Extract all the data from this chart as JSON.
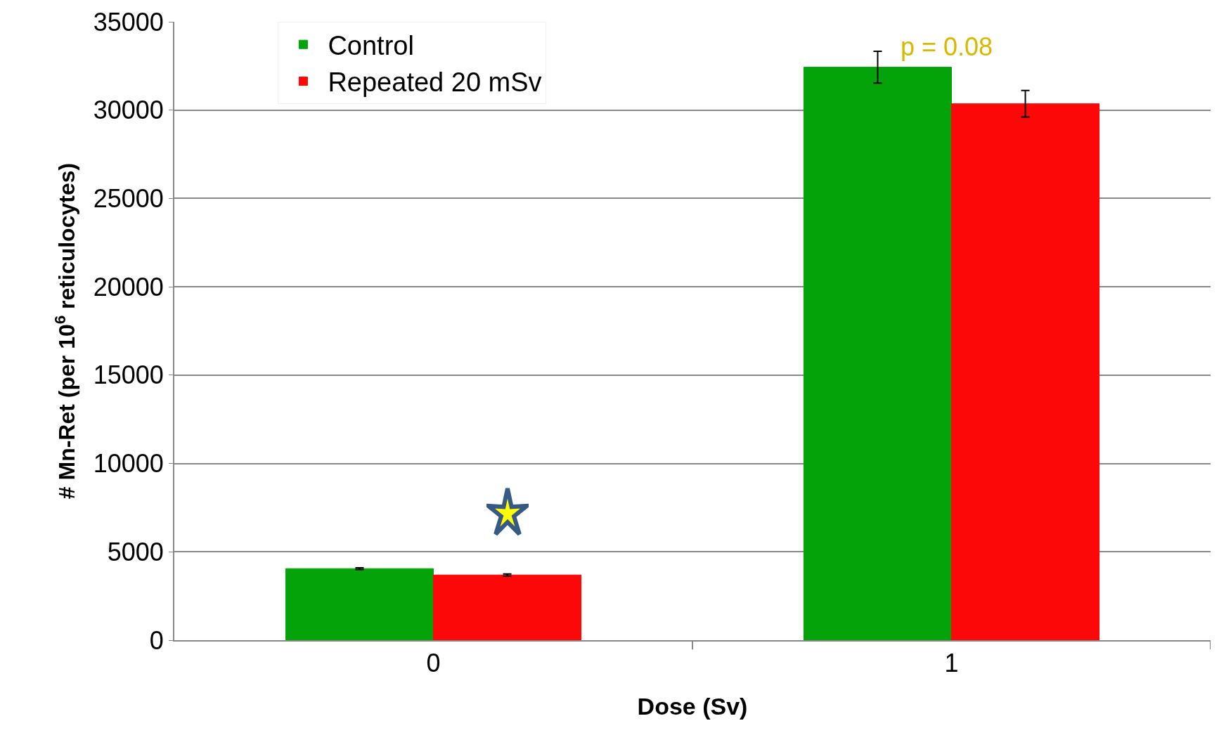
{
  "chart_data": {
    "type": "bar",
    "xlabel": "Dose (Sv)",
    "ylabel": "# Mn-Ret (per 10$^{6}$ reticulocytes)",
    "categories": [
      "0",
      "1"
    ],
    "series": [
      {
        "name": "Control",
        "color": "#05a30a",
        "values": [
          4050,
          32430
        ],
        "errors": [
          50,
          900
        ]
      },
      {
        "name": "Repeated 20 mSv",
        "color": "#fc0808",
        "values": [
          3690,
          30360
        ],
        "errors": [
          60,
          750
        ]
      }
    ],
    "annotations": [
      "p = 0.08"
    ],
    "ylim": [
      0,
      35000
    ],
    "yticks": [
      0,
      5000,
      10000,
      15000,
      20000,
      25000,
      30000,
      35000
    ],
    "grid": "y",
    "legend": "top left"
  }
}
